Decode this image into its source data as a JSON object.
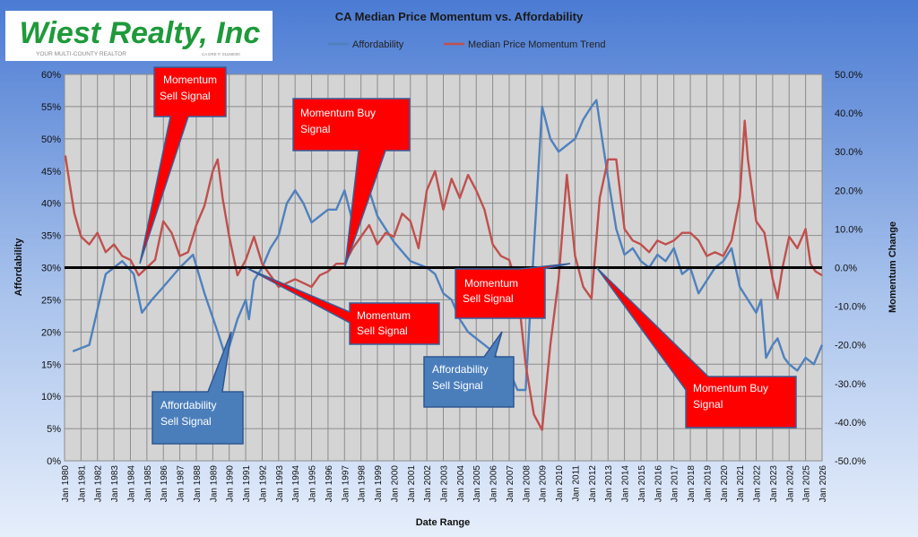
{
  "logo": {
    "name": "Wiest Realty, Inc",
    "tagline": "YOUR MULTI-COUNTY REALTOR",
    "license": "CA DRE #: 01168000"
  },
  "colors": {
    "affordability": "#4f81bd",
    "momentum": "#c0504d",
    "callout_red": "#ff0000",
    "callout_blue": "#4a7ebb",
    "logo_green": "#1e9a3a"
  },
  "chart_data": {
    "type": "line",
    "title": "CA Median Price Momentum vs. Affordability",
    "xlabel": "Date Range",
    "ylabel": "Affordability",
    "y2label": "Momentum Change",
    "ylim": [
      0,
      60
    ],
    "y2lim": [
      -50,
      50
    ],
    "yticks": [
      "0%",
      "5%",
      "10%",
      "15%",
      "20%",
      "25%",
      "30%",
      "35%",
      "40%",
      "45%",
      "50%",
      "55%",
      "60%"
    ],
    "y2ticks": [
      "-50.0%",
      "-40.0%",
      "-30.0%",
      "-20.0%",
      "-10.0%",
      "0.0%",
      "10.0%",
      "20.0%",
      "30.0%",
      "40.0%",
      "50.0%"
    ],
    "xticks": [
      "Jan 1980",
      "Jan 1981",
      "Jan 1982",
      "Jan 1983",
      "Jan 1984",
      "Jan 1985",
      "Jan 1986",
      "Jan 1987",
      "Jan 1988",
      "Jan 1989",
      "Jan 1990",
      "Jan 1991",
      "Jan 1992",
      "Jan 1993",
      "Jan 1994",
      "Jan 1995",
      "Jan 1996",
      "Jan 1997",
      "Jan 1998",
      "Jan 1999",
      "Jan 2000",
      "Jan 2001",
      "Jan 2002",
      "Jan 2003",
      "Jan 2004",
      "Jan 2005",
      "Jan 2006",
      "Jan 2007",
      "Jan 2008",
      "Jan 2009",
      "Jan 2010",
      "Jan 2011",
      "Jan 2012",
      "Jan 2013",
      "Jan 2014",
      "Jan 2015",
      "Jan 2016",
      "Jan 2017",
      "Jan 2018",
      "Jan 2019",
      "Jan 2020",
      "Jan 2021",
      "Jan 2022",
      "Jan 2023",
      "Jan 2024",
      "Jan 2025",
      "Jan 2026"
    ],
    "grid": true,
    "legend": "top-center",
    "series": [
      {
        "name": "Affordability",
        "axis": "left",
        "points": [
          [
            1980.5,
            17
          ],
          [
            1981.5,
            18
          ],
          [
            1982.5,
            29
          ],
          [
            1983.5,
            31
          ],
          [
            1984.2,
            29
          ],
          [
            1984.7,
            23
          ],
          [
            1985.3,
            25
          ],
          [
            1986,
            27
          ],
          [
            1987,
            30
          ],
          [
            1987.8,
            32
          ],
          [
            1988.5,
            26
          ],
          [
            1989.3,
            20
          ],
          [
            1989.8,
            16
          ],
          [
            1990.5,
            22
          ],
          [
            1991,
            25
          ],
          [
            1991.2,
            22
          ],
          [
            1991.5,
            28
          ],
          [
            1992,
            30
          ],
          [
            1992.5,
            33
          ],
          [
            1993,
            35
          ],
          [
            1993.5,
            40
          ],
          [
            1994,
            42
          ],
          [
            1994.5,
            40
          ],
          [
            1995,
            37
          ],
          [
            1995.5,
            38
          ],
          [
            1996,
            39
          ],
          [
            1996.5,
            39
          ],
          [
            1997,
            42
          ],
          [
            1997.5,
            37
          ],
          [
            1998,
            40
          ],
          [
            1998.5,
            42
          ],
          [
            1999,
            38
          ],
          [
            1999.5,
            36
          ],
          [
            2000,
            34
          ],
          [
            2001,
            31
          ],
          [
            2002,
            30
          ],
          [
            2002.5,
            29
          ],
          [
            2003,
            26
          ],
          [
            2003.5,
            25
          ],
          [
            2004,
            22
          ],
          [
            2004.5,
            20
          ],
          [
            2005,
            19
          ],
          [
            2005.5,
            18
          ],
          [
            2006,
            17
          ],
          [
            2006.5,
            15
          ],
          [
            2007,
            14
          ],
          [
            2007.5,
            11
          ],
          [
            2008,
            11
          ],
          [
            2008.5,
            33
          ],
          [
            2009,
            55
          ],
          [
            2009.5,
            50
          ],
          [
            2010,
            48
          ],
          [
            2010.5,
            49
          ],
          [
            2011,
            50
          ],
          [
            2011.5,
            53
          ],
          [
            2012,
            55
          ],
          [
            2012.3,
            56
          ],
          [
            2012.7,
            49
          ],
          [
            2013,
            44
          ],
          [
            2013.5,
            36
          ],
          [
            2014,
            32
          ],
          [
            2014.5,
            33
          ],
          [
            2015,
            31
          ],
          [
            2015.5,
            30
          ],
          [
            2016,
            32
          ],
          [
            2016.5,
            31
          ],
          [
            2017,
            33
          ],
          [
            2017.5,
            29
          ],
          [
            2018,
            30
          ],
          [
            2018.5,
            26
          ],
          [
            2019,
            28
          ],
          [
            2019.5,
            30
          ],
          [
            2020,
            31
          ],
          [
            2020.5,
            33
          ],
          [
            2021,
            27
          ],
          [
            2021.5,
            25
          ],
          [
            2022,
            23
          ],
          [
            2022.3,
            25
          ],
          [
            2022.6,
            16
          ],
          [
            2023,
            18
          ],
          [
            2023.3,
            19
          ],
          [
            2023.7,
            16
          ],
          [
            2024,
            15
          ],
          [
            2024.5,
            14
          ],
          [
            2025,
            16
          ],
          [
            2025.5,
            15
          ],
          [
            2026,
            18
          ]
        ]
      },
      {
        "name": "Median Price Momentum Trend",
        "axis": "right",
        "points": [
          [
            1980.05,
            29
          ],
          [
            1980.3,
            22
          ],
          [
            1980.6,
            14
          ],
          [
            1981,
            8
          ],
          [
            1981.5,
            6
          ],
          [
            1982,
            9
          ],
          [
            1982.5,
            4
          ],
          [
            1983,
            6
          ],
          [
            1983.5,
            3
          ],
          [
            1984,
            2
          ],
          [
            1984.5,
            -2
          ],
          [
            1985,
            0
          ],
          [
            1985.5,
            2
          ],
          [
            1986,
            12
          ],
          [
            1986.5,
            9
          ],
          [
            1987,
            3
          ],
          [
            1987.5,
            4
          ],
          [
            1988,
            11
          ],
          [
            1988.5,
            16
          ],
          [
            1989,
            25
          ],
          [
            1989.3,
            28
          ],
          [
            1989.6,
            18
          ],
          [
            1990,
            8
          ],
          [
            1990.5,
            -2
          ],
          [
            1991,
            2
          ],
          [
            1991.5,
            8
          ],
          [
            1992,
            1
          ],
          [
            1992.5,
            -2
          ],
          [
            1993,
            -5
          ],
          [
            1993.5,
            -4
          ],
          [
            1994,
            -3
          ],
          [
            1994.5,
            -4
          ],
          [
            1995,
            -5
          ],
          [
            1995.5,
            -2
          ],
          [
            1996,
            -1
          ],
          [
            1996.5,
            1
          ],
          [
            1997,
            1
          ],
          [
            1997.5,
            5
          ],
          [
            1998,
            8
          ],
          [
            1998.5,
            11
          ],
          [
            1999,
            6
          ],
          [
            1999.5,
            9
          ],
          [
            2000,
            8
          ],
          [
            2000.5,
            14
          ],
          [
            2001,
            12
          ],
          [
            2001.5,
            5
          ],
          [
            2002,
            20
          ],
          [
            2002.5,
            25
          ],
          [
            2003,
            15
          ],
          [
            2003.5,
            23
          ],
          [
            2004,
            18
          ],
          [
            2004.5,
            24
          ],
          [
            2005,
            20
          ],
          [
            2005.5,
            15
          ],
          [
            2006,
            6
          ],
          [
            2006.5,
            3
          ],
          [
            2007,
            2
          ],
          [
            2007.5,
            -5
          ],
          [
            2008,
            -25
          ],
          [
            2008.5,
            -38
          ],
          [
            2009,
            -42
          ],
          [
            2009.5,
            -20
          ],
          [
            2010,
            -3
          ],
          [
            2010.5,
            24
          ],
          [
            2011,
            3
          ],
          [
            2011.5,
            -5
          ],
          [
            2012,
            -8
          ],
          [
            2012.5,
            18
          ],
          [
            2013,
            28
          ],
          [
            2013.5,
            28
          ],
          [
            2014,
            10
          ],
          [
            2014.5,
            7
          ],
          [
            2015,
            6
          ],
          [
            2015.5,
            4
          ],
          [
            2016,
            7
          ],
          [
            2016.5,
            6
          ],
          [
            2017,
            7
          ],
          [
            2017.5,
            9
          ],
          [
            2018,
            9
          ],
          [
            2018.5,
            7
          ],
          [
            2019,
            3
          ],
          [
            2019.5,
            4
          ],
          [
            2020,
            3
          ],
          [
            2020.5,
            7
          ],
          [
            2021,
            18
          ],
          [
            2021.3,
            38
          ],
          [
            2021.5,
            28
          ],
          [
            2022,
            12
          ],
          [
            2022.5,
            9
          ],
          [
            2023,
            -3
          ],
          [
            2023.3,
            -8
          ],
          [
            2023.6,
            0
          ],
          [
            2024,
            8
          ],
          [
            2024.5,
            5
          ],
          [
            2025,
            10
          ],
          [
            2025.3,
            1
          ],
          [
            2025.6,
            -1
          ],
          [
            2026,
            -2
          ]
        ]
      }
    ],
    "zero_line": 30,
    "annotations": [
      {
        "id": "momentum-sell-1",
        "text": [
          "Momentum",
          "Sell Signal"
        ],
        "style": "red"
      },
      {
        "id": "momentum-buy-1",
        "text": [
          "Momentum Buy",
          "Signal"
        ],
        "style": "red"
      },
      {
        "id": "momentum-sell-2",
        "text": [
          "Momentum",
          "Sell Signal"
        ],
        "style": "red"
      },
      {
        "id": "momentum-sell-3",
        "text": [
          "Momentum",
          "Sell Signal"
        ],
        "style": "red"
      },
      {
        "id": "momentum-buy-2",
        "text": [
          "Momentum Buy",
          "Signal"
        ],
        "style": "red"
      },
      {
        "id": "affordability-sell-1",
        "text": [
          "Affordability",
          "Sell Signal"
        ],
        "style": "blue"
      },
      {
        "id": "affordability-sell-2",
        "text": [
          "Affordability",
          "Sell Signal"
        ],
        "style": "blue"
      }
    ]
  }
}
